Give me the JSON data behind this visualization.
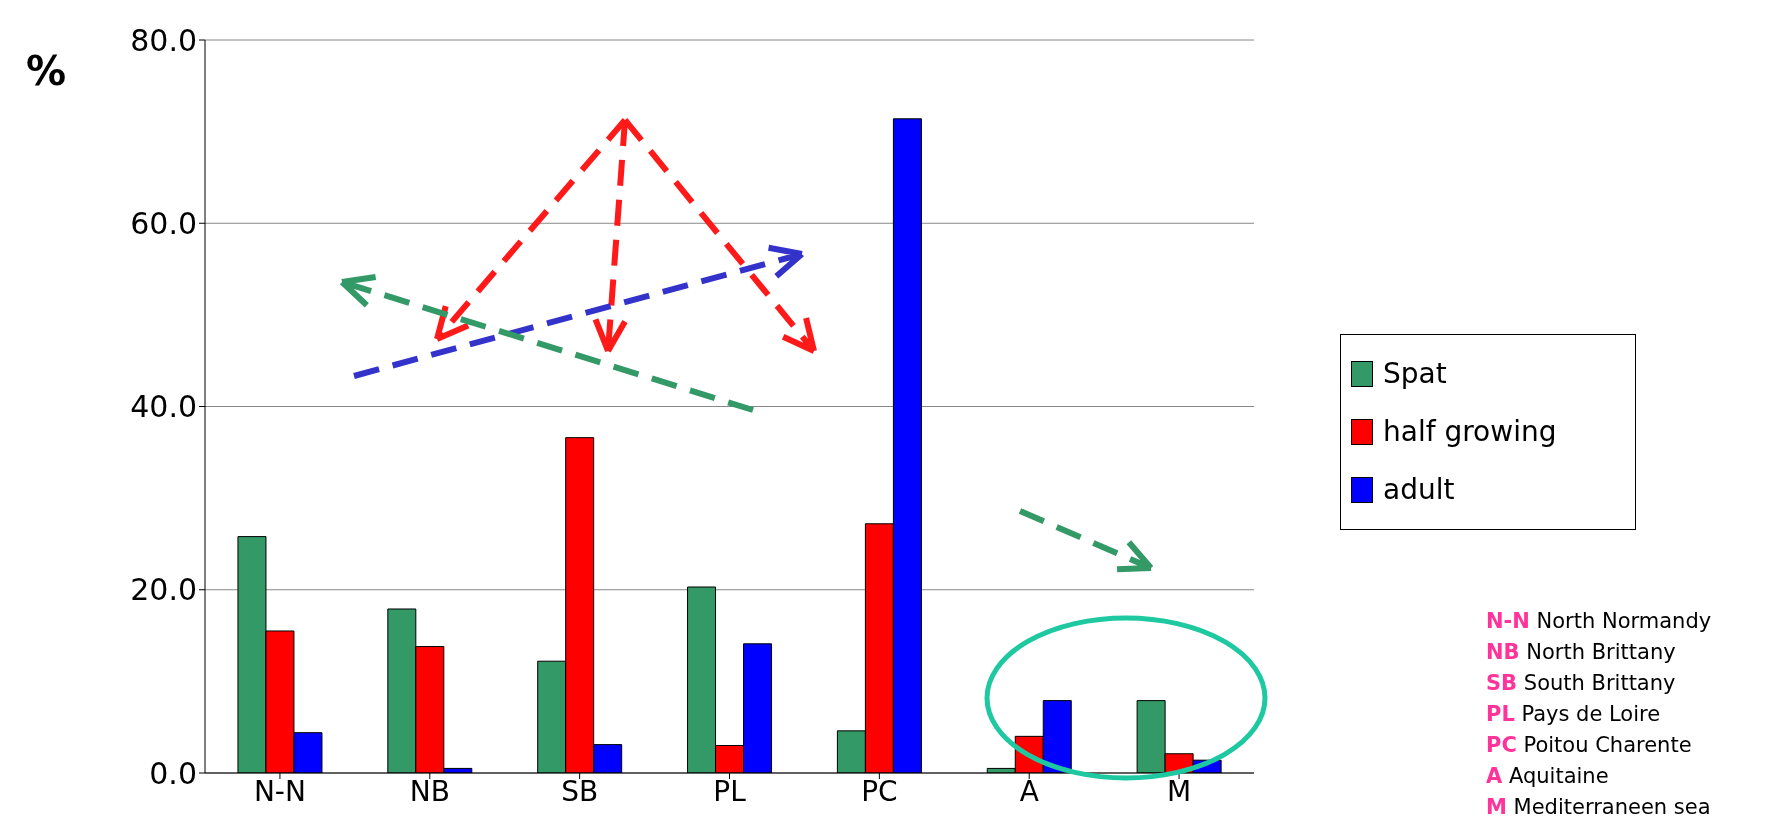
{
  "chart_data": {
    "type": "bar",
    "ylabel": "%",
    "categories": [
      "N-N",
      "NB",
      "SB",
      "PL",
      "PC",
      "A",
      "M"
    ],
    "series": [
      {
        "name": "Spat",
        "color": "#339966",
        "values": [
          25.8,
          17.9,
          12.2,
          20.3,
          4.6,
          0.5,
          7.9
        ]
      },
      {
        "name": "half growing",
        "color": "#ff0000",
        "values": [
          15.5,
          13.8,
          36.6,
          3.0,
          27.2,
          4.0,
          2.1
        ]
      },
      {
        "name": "adult",
        "color": "#0000ff",
        "values": [
          4.4,
          0.5,
          3.1,
          14.1,
          71.4,
          7.9,
          1.4
        ]
      }
    ],
    "ylim": [
      0,
      80
    ],
    "yticks": [
      {
        "value": 0,
        "label": "0.0"
      },
      {
        "value": 20,
        "label": "20.0"
      },
      {
        "value": 40,
        "label": "40.0"
      },
      {
        "value": 60,
        "label": "60.0"
      },
      {
        "value": 80,
        "label": "80.0"
      }
    ],
    "grid": "y",
    "legend": "right",
    "annotations": [
      "N-N North Normandy",
      "NB North Brittany",
      "SB South Brittany",
      "PL Pays de Loire",
      "PC Poitou Charente",
      "A Aquitaine",
      "M Mediterraneen sea"
    ]
  }
}
